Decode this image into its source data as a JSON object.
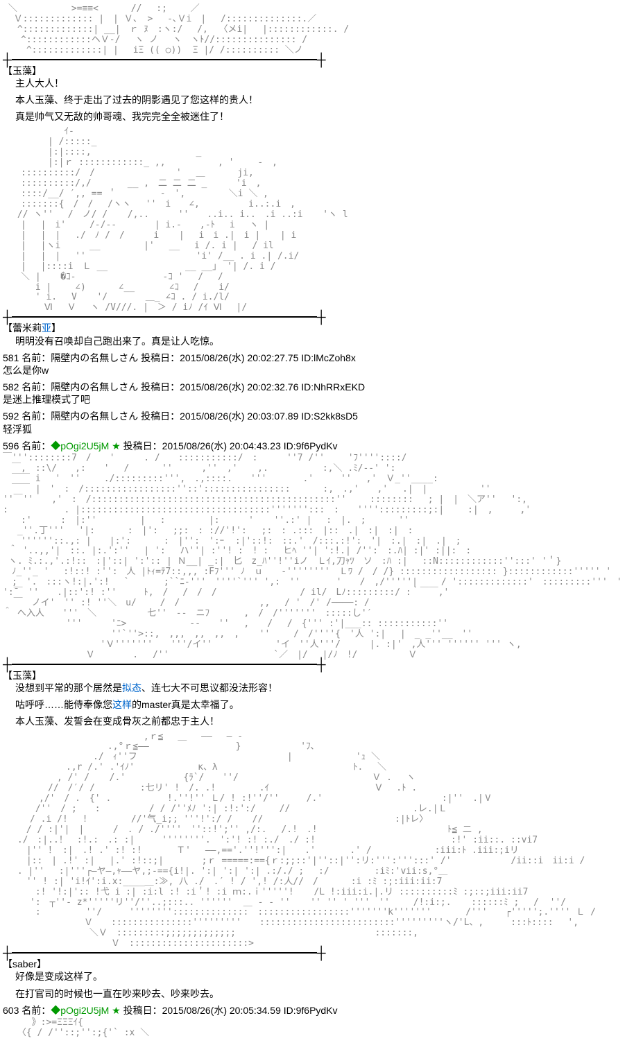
{
  "aa_art": {
    "art1": " ＼　　　　　　>=≡≡<　　　 //　 :;　　 ／\n  Ｖ::::::::::::: |　| Ｖ、 >　 -､Ｖi　|　 /::::::::::::::.／\n　 ^:::::::::::::| __|　ｒ ﾇ　:ヽ:/　 /,  〈メi|　 |::::::::::::. /\n　　^::::::::::::ヘＶ-/　 ヽ ノ 　ヽ　ヽﾄ//::::::::::::::: /\n　　 ^:::::::::::::| |　 iΞ (( ○))  Ξ |/ /:::::::::: ＼ノ",
    "art2": "　　　 　 　 ｲ-\n　　　　　| /:::::_\n　　　　　|:|::::,　　　　　　　　　　　 _\n　　　　　|:|ｒ ::::::::::::_ ,,　　 　 　 , '　　 -　,\n　　::::::::::/　/　　　　　　　　　'　 ＿　　　 ji,\n　　::::::::::/,/　　　　__ ,　二 二 二 _ 　　 'i　,\n　　::::/__/ ′,, == ＇　 　 　 -　',　 　 　 ＼i ＼ ,\n　　:::::::{　/　/　 /ヽヽ　 ''　i　　∠, 　 　 　 i..:.i　,\n　 // ヽ'' 　/　ノ/ / 　 /,..　 　 ''　　..i.. i..　.i ..:i 　 'ヽ l\n　　|　 |　i'　　 /-/--　 　 　| i.-　　,-ﾄ　 i 　ヽ |\n　　|　 |　|　 ./　ﾉ /　/　 　 i 　 |　 i　i .|　i | 　 | i\n　　|　 |ヽi　 　 __　 　 　 |'　 __　 i /. i |　 / il\n　　|　 |　|　 ''　　 　 　 　 　 　 　 'i' /__ . i .| /.i/\n　　|　 |::::i　Ｌ __ 　 　 　 　 　 __ __」 '| /. i /\n　　＼ | 　 �ｺ-　 　 　 　 　 　 -ｺ '　 /　 /\n　　　 i |　 　∠)　　 　∠__ 　 　 ∠ｺ　 / 　 i/\n　　　 ' i. 　V 　 '/　　 　 ＿_ ∠ｺ . / i./l/\n　　　　 Ⅵ　 Ｖ　 ヽ /V///. |　＞ / iﾉ /ｲ Ⅵ　 |/",
    "art3": "￣'''::::::::7　/　　'　 　 . /　　:::::::::::/　: 　　 ''7 /''　 　'ﾌ''''::::/\n　￣,　::\\/　　,:　　'　 /　　 　''　 　 ,''　,' 　 ,.　　　　　　:,＼ .ﾐ/--' ':\n　￣￣ i　 '　''　 　./:::::::::''',　.,::::.　　'''　　　　.'　　　''　 ,'　Ｖ_''____:\n　￣￣ |　'　:　/:::::::::::::::::''::'::::::::::::::::　　 　:,　.,'　　,'　 .|　|　　 　 　 ''\n''￣''　　,'　:　/:::::::::::::::::::::::::::::::::::::::::::::''　 　::::::::　 ; |　|　＼ア''　 ':,\n:　　　　 　 . |:::::::::::::::::::::::::::::::::::''''''':::　:　　'''':::::::::;:|　　 :|　,　　　,'\n　　:'　 　 :　|:''　 　 　 |　 :　 　 　 |: 　 　' 　 ''.:' |　 :　|.　;　　　 ''\n 　_''.丁''' 　'|:　　 　:　|':　 ;;:　: ://'!':　 ;:　: .:::　|::　.|　:|　:|　:\n　　''''''::.,: |　　|:':　　 　:　|'':　':ｰ  :|'::!:　::.'　/:::.:!':　'|　:.|　:|　.|　;\n ＾ '..,,'|　::. |:.':''　 | ':　 ハ''| :''! :　! :　 ヒﾍ ''| ':!.| /'':　:.ﾊ| :|' :||:　:\n ヽ. ﾐ.:.,'.:!::　:|'::| ':':: | Ｎ__| _:|　匕　z_ﾊ''!''iノ　Ｌｲ,刀ｬﾂ　ソ　:ﾊ :|　 ::N::::::::::::'':::' '＇}\n　ﾉ_''_ '　 :!::! :'':　人 |ﾄｨ=ﾃ7::,,, :Fﾌ''' ﾉ　ｕ　　-''''''''　Ｌﾜ /　/ /} :::::::::::::::::: }::::::::::::''''' '\n　;　'.　:::ヽ!:|.':!　 ` 　 　 ;``ﾆ-'''　''''`''' ',:　''　　　　'　　/　,/'''''|　　 / ':::::::::::::'　:::::::::'''　'\n':̄￣ ''　　.|::':! :''　　　ﾄ,　/　 /　/　/　　　　　　　 　 / il/　Lﾉ:::::::::/ :｀￣￣,'\n  ￣　ノイ'　'' :! ''＼　u/　　 /　/　　　　　 　 　 ,,　 / '　/' /────: /\n＾ へ入人　　'''　＼　　　　　 七''　--　ニﾌ 　 　 ,　/　/'''''''　:::::し'′\n　　　　　　　''' 　 　'ﾆ>　　　　　　　--　　''　 ,　　/　 /　{''' :'|___:: :::::::::::''\n　　　　　　　　　　　　''`''>::,　,,,　,,　,,　, 　 '' 　　/　/''''{　'人 ':| 　|　_ _''__　''\n　　　　　　　 　 　 'Ｖ'''''''　　'''/イ'' 　 　 　 　 'イ　''人'''/　 　 |. :|'　,人''' '''''' ''' ヽ,\n　　　　　　　 　 Ｖ　　 　 . 　/''　　　　　　　　　　　 `／　|/　 |/ﾉ　!/　　　　　 Ｖ",
    "art4": "　　 　　　　　　　　　　　　　,ｒ≦　 ＿　 ――　 ― -\n　　　　　　　　　　　 .,°ｒ≦――　　　　　　　　　 }　　　　　　 'ﾌ､\n　　　　　　　　　　./　ｨ''フ 　 　 　 　 　 　 　 　 　 　 | 　 　 　 　 'ｭ ＼\n　　　　　　　.,r /.' .'ｲﾉ'　　　　　　　κ、λ 　 　 　 　 　 　 　 　 　 ﾄ. 　＼\n　　　　　　, /' / 　 /.'　 　 　 　 {ﾗ`/　　''/　　　　　　　　　　　 　 　 Ｖ . 　ヽ\n　　　　　//　/′/ /　　　　　:七リ' !　/. .! 　 　 　.ｲ　　　　　　　 　 　 　Ⅴ 　.ﾄ .\n　　　　,/'　/ .　{' .　　　　 　 !.''!'' Ｌ/ ! :!''/''　　　/.'　　　 　 　 　 　 　 　 :|''　.|Ⅴ\n　　　 /''　/ ;　　: 　 　 　 / / /''ﾒﾉ ':| :!:':/　　 //　　　　　　　　　　　　　 .レ.|Ｌ\n　　　/ .i /!　 !　 　 　 //'气_i;; '''!':/ / 　 //　　　　　　　　　　　　　　 :|ﾄレ〉\n　　 / / :|'|　|　 　 /　. / ./''''　''::!';'' ,/:. 　/.!　.!　　　　　　　　　 　 　 　 ﾄ≦ 二 ,\n　 ./　:|..！　:!.:　.: :|　　　''''''''.　':'! :! :./　./ :!　　　　　　　　　　　　　　　:!' :ii::. ::vi7\n　　 |'' ！ :|　.! .' :! :! 　 　 Ｔ' 　――,=='.''!''':|　　.' 　 　 .' /　　　　　　　:iii:ﾄ .iii:;iリ\n　　 |::　| .!' :|　 |.' :!::;|　　 　 ;ｒ =====:=={ｒ:;;::'|''::|'':リ:''':''':::' /'　　　　　 　/ii::i　ii:i /\n　 . |''　 :|'''┌―ヤ―,ｬ――ヤ,;-=={i!|. ':| ':| ':| .:/./ ;　 :/　　　　　:iﾐ:'vii:s,°＿\n　　 '' ! :| 'i!ｲ':i.x:____＿:≫, 八 ./　.′ ! / ',! /:人//　/　　 　:i :ﾐ :;:iii:ii:7\n　　　 :! '!:|':: !弋 i :| :i:l :! :i＇! :i ｍ:.ｉ'''''! 　 /L !:iii:i.|.リ ::::::::::ﾐ :;::;iii:ii7\n　　　':　┬''- z*'''''リ''/''..;:::.. ''''''  ＿ - - '' 　 '' '' ' '''　''　 　/!:i:;. 　 ::::::ﾐ ;　 /  ''/\n　　　 :　　　　　''/　　　''''''''::::::::::::::　:::::::::::::::::'''''''k''''''' 　 　 /'''　　┌''''';.'''' Ｌ /\n　　　　　　　　　Ｖ　　:::::::::::::::'''''''''　　:::::::::::::::::::::::::'''''''''ヽ/'L、,　　　:::ﾄ::::　 ',\n　　　　　　　　　 ＼Ｖ　:::::::::;;;;;;;;;;;;;　　 　 　 　 　 　 　 　 　 :::::::,\n　　　　　　　　　　　　Ｖ　::::::::::::::::::::::>",
    "art5": "  　　》:>=ΞΞΞｲ{\n　 〈{ / /''::;'':;{'` :x ＼"
  },
  "dialogue1": {
    "speaker": "【玉藻】",
    "lines": [
      "主人大人！",
      "本人玉藻、终于走出了过去的阴影遇见了您这样的贵人！",
      "真是帅气又无敌的帅哥魂、我完完全全被迷住了！"
    ],
    "link_word_l3": "遇见"
  },
  "dialogue2": {
    "speaker_prefix": "【蕾米莉",
    "speaker_link": "亚",
    "speaker_suffix": "】",
    "line": "明明没有召唤却自己跑出来了。真是让人吃惊。"
  },
  "posts": [
    {
      "num": "581",
      "name_label": "名前：",
      "name": "隔壁内の名無しさん",
      "meta": "投稿日：2015/08/26(水) 20:02:27.75 ID:lMcZoh8x",
      "body": "怎么是你w"
    },
    {
      "num": "582",
      "name_label": "名前：",
      "name": "隔壁内の名無しさん",
      "meta": "投稿日：2015/08/26(水) 20:02:32.76 ID:NhRRxEKD",
      "body": "是迷上推理模式了吧"
    },
    {
      "num": "592",
      "name_label": "名前：",
      "name": "隔壁内の名無しさん",
      "meta": "投稿日：2015/08/26(水) 20:03:07.89 ID:S2kk8sD5",
      "body": "轻浮狐"
    }
  ],
  "trip_post1": {
    "num": "596",
    "name_label": "名前：",
    "trip": "◆pOgi2U5jM ★",
    "meta": "投稿日：2015/08/26(水) 20:04:43.23 ID:9f6PydKv"
  },
  "dialogue3": {
    "speaker": "【玉藻】",
    "lines": [
      {
        "prefix": "没想到平常的那个居然是",
        "link": "拟态",
        "suffix": "、连七大不可思议都没法形容！"
      },
      {
        "prefix": "咕呼呼……能侍奉像您",
        "link": "这样",
        "suffix": "的master真是太幸福了。"
      },
      {
        "text": "本人玉藻、发誓会在变成骨灰之前都忠于主人！"
      }
    ]
  },
  "dialogue4": {
    "speaker": "【saber】",
    "lines": [
      "好像是变成这样了。",
      "在打官司的时候也一直在吵来吵去、吵来吵去。"
    ]
  },
  "trip_post2": {
    "num": "603",
    "name_label": "名前：",
    "trip": "◆pOgi2U5jM ★",
    "meta": "投稿日：2015/08/26(水) 20:05:34.59 ID:9f6PydKv"
  }
}
